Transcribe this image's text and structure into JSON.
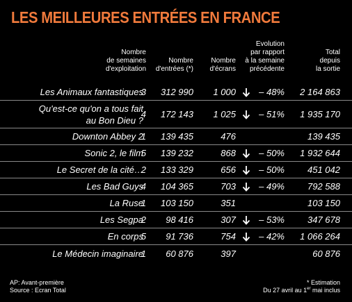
{
  "title": "LES MEILLEURES ENTRÉES EN FRANCE",
  "headers": {
    "weeks": [
      "Nombre",
      "de semaines",
      "d'exploitation"
    ],
    "entries": [
      "Nombre",
      "d'entrées (*)"
    ],
    "screens": [
      "Nombre",
      "d'écrans"
    ],
    "evolution": [
      "Evolution",
      "par rapport",
      "à la semaine",
      "précédente"
    ],
    "total": [
      "Total",
      "depuis",
      "la sortie"
    ]
  },
  "rows": [
    {
      "title": [
        "Les Animaux fantastiques"
      ],
      "weeks": "3",
      "entries": "312 990",
      "screens": "1 000",
      "arrow": true,
      "evolution": "– 48%",
      "total": "2 164 863"
    },
    {
      "title": [
        "Qu'est-ce qu'on a tous fait",
        "au Bon Dieu ?"
      ],
      "weeks": "4",
      "entries": "172 143",
      "screens": "1 025",
      "arrow": true,
      "evolution": "– 51%",
      "total": "1 935 170"
    },
    {
      "title": [
        "Downton Abbey 2"
      ],
      "weeks": "1",
      "entries": "139 435",
      "screens": "476",
      "arrow": false,
      "evolution": "",
      "total": "139 435"
    },
    {
      "title": [
        "Sonic 2, le film"
      ],
      "weeks": "5",
      "entries": "139 232",
      "screens": "868",
      "arrow": true,
      "evolution": "– 50%",
      "total": "1 932 644"
    },
    {
      "title": [
        "Le Secret de la cité…"
      ],
      "weeks": "2",
      "entries": "133 329",
      "screens": "656",
      "arrow": true,
      "evolution": "– 50%",
      "total": "451 042"
    },
    {
      "title": [
        "Les Bad Guys"
      ],
      "weeks": "4",
      "entries": "104 365",
      "screens": "703",
      "arrow": true,
      "evolution": "– 49%",
      "total": "792 588"
    },
    {
      "title": [
        "La Ruse"
      ],
      "weeks": "1",
      "entries": "103 150",
      "screens": "351",
      "arrow": false,
      "evolution": "",
      "total": "103 150"
    },
    {
      "title": [
        "Les Segpa"
      ],
      "weeks": "2",
      "entries": "98 416",
      "screens": "307",
      "arrow": true,
      "evolution": "– 53%",
      "total": "347 678"
    },
    {
      "title": [
        "En corps"
      ],
      "weeks": "5",
      "entries": "91 736",
      "screens": "754",
      "arrow": true,
      "evolution": "– 42%",
      "total": "1 066 264"
    },
    {
      "title": [
        "Le Médecin imaginaire"
      ],
      "weeks": "1",
      "entries": "60 876",
      "screens": "397",
      "arrow": false,
      "evolution": "",
      "total": "60 876"
    }
  ],
  "footer": {
    "ap": "AP: Avant-première",
    "source": "Source : Ecran Total",
    "estimation": "* Estimation",
    "period_before": "Du 27 avril au 1",
    "period_sup": "er",
    "period_after": " mai inclus"
  },
  "colors": {
    "title": "#f07a3c",
    "background": "#000000",
    "divider": "#8a8a8a"
  },
  "icons": {
    "decline": "arrow-down-icon"
  }
}
